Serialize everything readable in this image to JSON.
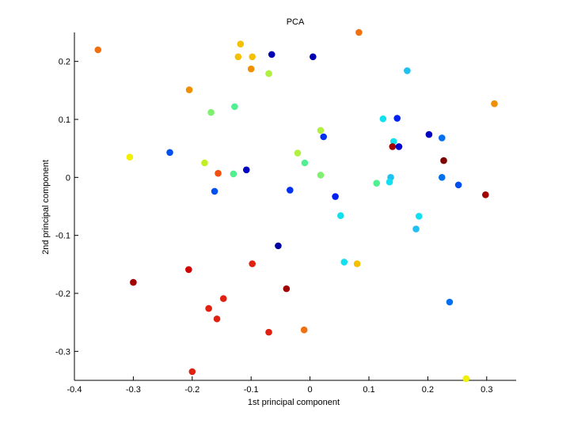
{
  "chart_data": {
    "type": "scatter",
    "title": "PCA",
    "xlabel": "1st principal component",
    "ylabel": "2nd principal component",
    "xlim": [
      -0.4,
      0.35
    ],
    "ylim": [
      -0.35,
      0.25
    ],
    "xticks": [
      -0.4,
      -0.3,
      -0.2,
      -0.1,
      0,
      0.1,
      0.2,
      0.3
    ],
    "xtick_labels": [
      "-0.4",
      "-0.3",
      "-0.2",
      "-0.1",
      "0",
      "0.1",
      "0.2",
      "0.3"
    ],
    "yticks": [
      -0.3,
      -0.2,
      -0.1,
      0,
      0.1,
      0.2
    ],
    "ytick_labels": [
      "-0.3",
      "-0.2",
      "-0.1",
      "0",
      "0.1",
      "0.2"
    ],
    "grid": false,
    "points": [
      {
        "x": -0.36,
        "y": 0.22,
        "color": "#f07010"
      },
      {
        "x": -0.118,
        "y": 0.23,
        "color": "#f5c000"
      },
      {
        "x": -0.122,
        "y": 0.208,
        "color": "#f5c000"
      },
      {
        "x": -0.098,
        "y": 0.208,
        "color": "#f5c000"
      },
      {
        "x": -0.1,
        "y": 0.187,
        "color": "#f09000"
      },
      {
        "x": -0.07,
        "y": 0.179,
        "color": "#b0f040"
      },
      {
        "x": -0.065,
        "y": 0.212,
        "color": "#0000b0"
      },
      {
        "x": 0.005,
        "y": 0.208,
        "color": "#0000b0"
      },
      {
        "x": 0.083,
        "y": 0.25,
        "color": "#f07010"
      },
      {
        "x": 0.165,
        "y": 0.184,
        "color": "#20c0f0"
      },
      {
        "x": 0.313,
        "y": 0.127,
        "color": "#f09000"
      },
      {
        "x": -0.205,
        "y": 0.151,
        "color": "#f09000"
      },
      {
        "x": -0.128,
        "y": 0.122,
        "color": "#50f090"
      },
      {
        "x": -0.168,
        "y": 0.112,
        "color": "#80f070"
      },
      {
        "x": 0.124,
        "y": 0.101,
        "color": "#10e0f0"
      },
      {
        "x": 0.148,
        "y": 0.102,
        "color": "#0020f0"
      },
      {
        "x": 0.018,
        "y": 0.081,
        "color": "#b0f040"
      },
      {
        "x": 0.023,
        "y": 0.07,
        "color": "#0030f0"
      },
      {
        "x": 0.202,
        "y": 0.074,
        "color": "#0000c0"
      },
      {
        "x": 0.224,
        "y": 0.068,
        "color": "#0070f0"
      },
      {
        "x": 0.142,
        "y": 0.062,
        "color": "#10e0f0"
      },
      {
        "x": 0.14,
        "y": 0.053,
        "color": "#a00000"
      },
      {
        "x": 0.151,
        "y": 0.053,
        "color": "#0000d0"
      },
      {
        "x": -0.238,
        "y": 0.043,
        "color": "#0050f0"
      },
      {
        "x": -0.306,
        "y": 0.035,
        "color": "#f0f000"
      },
      {
        "x": -0.021,
        "y": 0.042,
        "color": "#b0f040"
      },
      {
        "x": -0.009,
        "y": 0.025,
        "color": "#50f090"
      },
      {
        "x": -0.179,
        "y": 0.025,
        "color": "#c0f020"
      },
      {
        "x": 0.227,
        "y": 0.029,
        "color": "#800000"
      },
      {
        "x": -0.108,
        "y": 0.013,
        "color": "#0000c0"
      },
      {
        "x": -0.156,
        "y": 0.007,
        "color": "#f05010"
      },
      {
        "x": -0.13,
        "y": 0.006,
        "color": "#50f090"
      },
      {
        "x": 0.018,
        "y": 0.004,
        "color": "#80f070"
      },
      {
        "x": 0.137,
        "y": 0.0,
        "color": "#20c0f0"
      },
      {
        "x": 0.224,
        "y": 0.0,
        "color": "#0070f0"
      },
      {
        "x": 0.113,
        "y": -0.01,
        "color": "#50f090"
      },
      {
        "x": 0.135,
        "y": -0.008,
        "color": "#10e0f0"
      },
      {
        "x": 0.252,
        "y": -0.013,
        "color": "#0050f0"
      },
      {
        "x": -0.162,
        "y": -0.024,
        "color": "#0050f0"
      },
      {
        "x": -0.034,
        "y": -0.022,
        "color": "#0030f0"
      },
      {
        "x": 0.298,
        "y": -0.03,
        "color": "#a00000"
      },
      {
        "x": 0.043,
        "y": -0.033,
        "color": "#0020f0"
      },
      {
        "x": 0.052,
        "y": -0.066,
        "color": "#10e0f0"
      },
      {
        "x": 0.185,
        "y": -0.067,
        "color": "#10e0f0"
      },
      {
        "x": 0.18,
        "y": -0.089,
        "color": "#20c0f0"
      },
      {
        "x": -0.054,
        "y": -0.118,
        "color": "#0000a0"
      },
      {
        "x": 0.058,
        "y": -0.146,
        "color": "#10e0f0"
      },
      {
        "x": 0.08,
        "y": -0.149,
        "color": "#f5c000"
      },
      {
        "x": -0.098,
        "y": -0.149,
        "color": "#e02010"
      },
      {
        "x": -0.206,
        "y": -0.159,
        "color": "#d00000"
      },
      {
        "x": -0.3,
        "y": -0.181,
        "color": "#a00000"
      },
      {
        "x": -0.04,
        "y": -0.192,
        "color": "#a00000"
      },
      {
        "x": -0.147,
        "y": -0.209,
        "color": "#e02010"
      },
      {
        "x": -0.172,
        "y": -0.226,
        "color": "#e02010"
      },
      {
        "x": -0.158,
        "y": -0.244,
        "color": "#e02010"
      },
      {
        "x": -0.07,
        "y": -0.267,
        "color": "#e02010"
      },
      {
        "x": -0.01,
        "y": -0.263,
        "color": "#f07010"
      },
      {
        "x": 0.237,
        "y": -0.215,
        "color": "#0070f0"
      },
      {
        "x": -0.2,
        "y": -0.335,
        "color": "#e02010"
      },
      {
        "x": 0.265,
        "y": -0.347,
        "color": "#f0f000"
      }
    ]
  }
}
